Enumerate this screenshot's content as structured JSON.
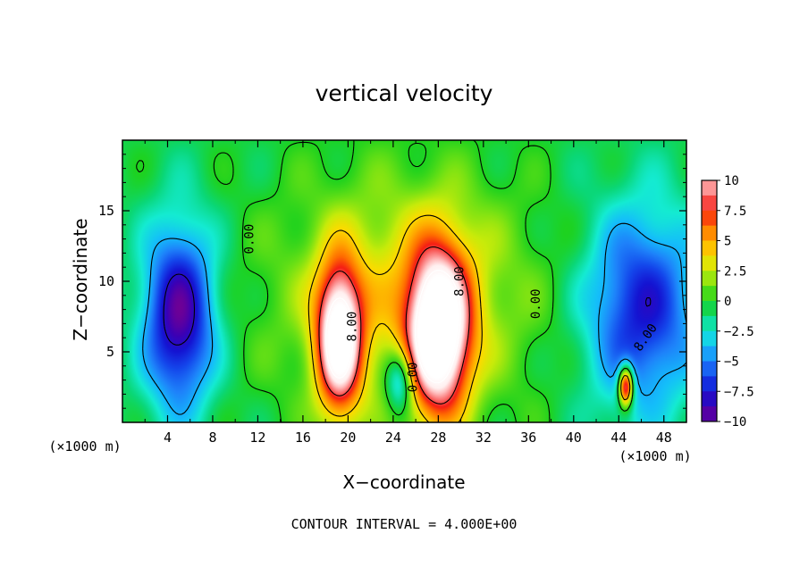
{
  "chart_data": {
    "type": "heatmap",
    "title": "vertical velocity",
    "xlabel": "X−coordinate",
    "ylabel": "Z−coordinate",
    "x_unit_label": "(×1000 m)",
    "x_unit_label_right": "(×1000 m)",
    "footer": "CONTOUR INTERVAL = 4.000E+00",
    "xlim": [
      0,
      50
    ],
    "ylim": [
      0,
      20
    ],
    "x_ticks": [
      4,
      8,
      12,
      16,
      20,
      24,
      28,
      32,
      36,
      40,
      44,
      48
    ],
    "y_ticks": [
      5,
      10,
      15
    ],
    "colorbar": {
      "range": [
        -10,
        10
      ],
      "tick_values": [
        10,
        7.5,
        5,
        2.5,
        0,
        -2.5,
        -5,
        -7.5,
        -10
      ],
      "tick_labels": [
        "10",
        "7.5",
        "5",
        "2.5",
        "0",
        "−2.5",
        "−5",
        "−7.5",
        "−10"
      ]
    },
    "contour_labels": [
      {
        "text": "0.00",
        "x": 11.3,
        "z": 13.0,
        "rot": -90
      },
      {
        "text": "8.00",
        "x": 20.4,
        "z": 6.8,
        "rot": -90
      },
      {
        "text": "0.00",
        "x": 25.8,
        "z": 3.2,
        "rot": -90
      },
      {
        "text": "8.00",
        "x": 29.9,
        "z": 10.0,
        "rot": -90
      },
      {
        "text": "0.00",
        "x": 36.7,
        "z": 8.4,
        "rot": -90
      },
      {
        "text": "8.00",
        "x": 46.4,
        "z": 6.0,
        "rot": -55
      }
    ],
    "features": [
      {
        "kind": "updraft",
        "x": 19.2,
        "z": 6.0,
        "sx": 1.4,
        "sz": 3.6,
        "peak": 14
      },
      {
        "kind": "updraft",
        "x": 28.0,
        "z": 6.5,
        "sx": 1.9,
        "sz": 4.0,
        "peak": 16
      },
      {
        "kind": "warm-region",
        "x": 25.0,
        "z": 9.0,
        "sx": 8.0,
        "sz": 6.0,
        "peak": 4
      },
      {
        "kind": "downdraft",
        "x": 5.0,
        "z": 7.5,
        "sx": 2.2,
        "sz": 4.5,
        "peak": -9
      },
      {
        "kind": "downdraft",
        "x": 46.0,
        "z": 8.0,
        "sx": 3.5,
        "sz": 5.0,
        "peak": -7
      },
      {
        "kind": "downdraft",
        "x": 24.6,
        "z": 3.0,
        "sx": 0.9,
        "sz": 1.6,
        "peak": -6
      },
      {
        "kind": "updraft",
        "x": 44.6,
        "z": 2.6,
        "sx": 0.45,
        "sz": 1.0,
        "peak": 12
      }
    ],
    "grid": false
  }
}
